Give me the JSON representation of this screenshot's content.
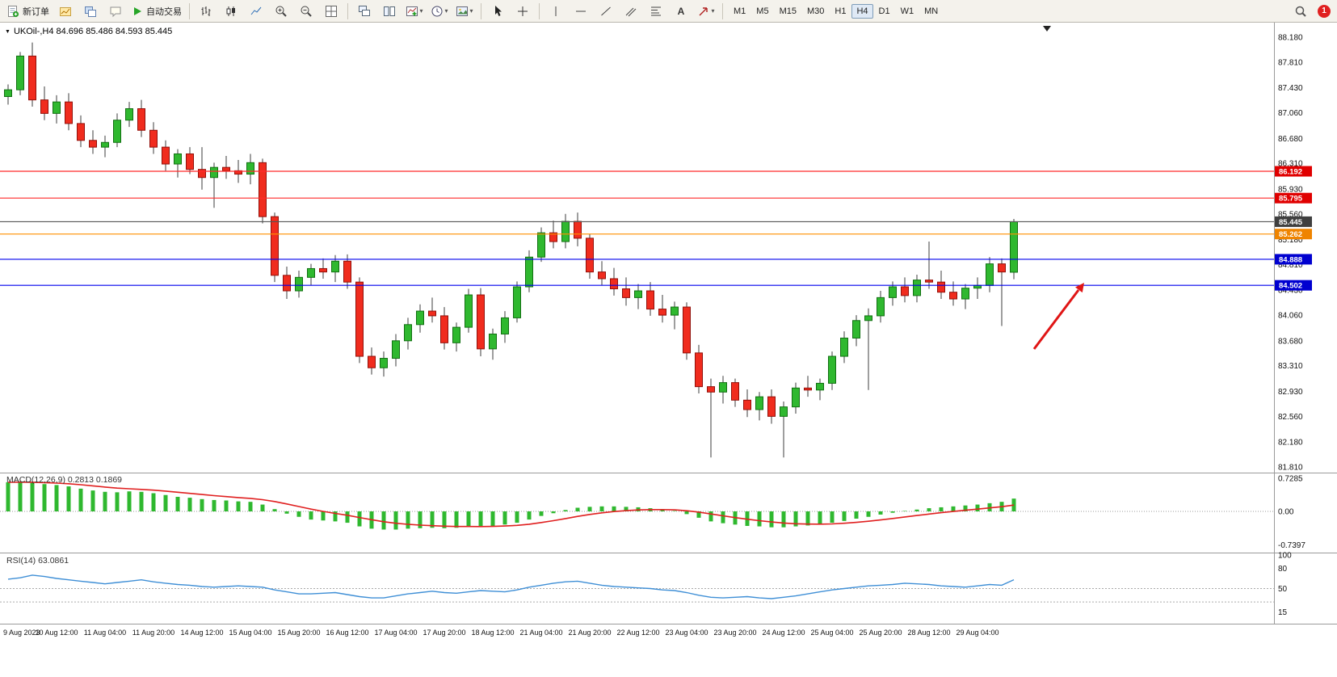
{
  "window": {
    "symbol_info": "UKOil-,H4 84.696 85.486 84.593 85.445"
  },
  "toolbar": {
    "new_order_label": "新订单",
    "autotrading_label": "自动交易",
    "text_tool_label": "A",
    "notification_count": "1",
    "timeframes": [
      {
        "label": "M1",
        "active": false
      },
      {
        "label": "M5",
        "active": false
      },
      {
        "label": "M15",
        "active": false
      },
      {
        "label": "M30",
        "active": false
      },
      {
        "label": "H1",
        "active": false
      },
      {
        "label": "H4",
        "active": true
      },
      {
        "label": "D1",
        "active": false
      },
      {
        "label": "W1",
        "active": false
      },
      {
        "label": "MN",
        "active": false
      }
    ]
  },
  "indicators": {
    "macd": {
      "label": "MACD(12,26,9) 0.2813 0.1869",
      "axis_labels": [
        "0.7285",
        "0.00",
        "-0.7397"
      ]
    },
    "rsi": {
      "label": "RSI(14) 63.0861",
      "axis_labels": [
        "100",
        "80",
        "50",
        "15"
      ],
      "levels": [
        50,
        30
      ]
    }
  },
  "colors": {
    "up_body": "#2fb82f",
    "up_border": "#127012",
    "down_body": "#f02c1e",
    "down_border": "#92100a",
    "wick": "#3c3c3c",
    "macd_hist": "#2fb82f",
    "macd_signal": "#e02020",
    "rsi_line": "#3f8fd6",
    "annotation_arrow": "#e01515",
    "pane_divider": "#9a9a9a"
  },
  "chart_data": {
    "type": "candlestick",
    "symbol": "UKOil-",
    "timeframe": "H4",
    "last_bar": {
      "open": 84.696,
      "high": 85.486,
      "low": 84.593,
      "close": 85.445
    },
    "price_axis_ticks": [
      "88.180",
      "87.810",
      "87.430",
      "87.060",
      "86.680",
      "86.310",
      "85.930",
      "85.560",
      "85.180",
      "84.810",
      "84.430",
      "84.060",
      "83.680",
      "83.310",
      "82.930",
      "82.560",
      "82.180",
      "81.810"
    ],
    "x_labels": [
      "9 Aug 2023",
      "10 Aug 12:00",
      "11 Aug 04:00",
      "11 Aug 20:00",
      "14 Aug 12:00",
      "15 Aug 04:00",
      "15 Aug 20:00",
      "16 Aug 12:00",
      "17 Aug 04:00",
      "17 Aug 20:00",
      "18 Aug 12:00",
      "21 Aug 04:00",
      "21 Aug 20:00",
      "22 Aug 12:00",
      "23 Aug 04:00",
      "23 Aug 20:00",
      "24 Aug 12:00",
      "25 Aug 04:00",
      "25 Aug 20:00",
      "28 Aug 12:00",
      "29 Aug 04:00"
    ],
    "bars_per_label": 4,
    "ohlc": [
      [
        87.3,
        87.48,
        87.18,
        87.4
      ],
      [
        87.4,
        87.96,
        87.32,
        87.9
      ],
      [
        87.9,
        88.1,
        87.15,
        87.25
      ],
      [
        87.25,
        87.45,
        86.95,
        87.05
      ],
      [
        87.05,
        87.32,
        86.9,
        87.22
      ],
      [
        87.22,
        87.35,
        86.8,
        86.9
      ],
      [
        86.9,
        87.02,
        86.55,
        86.65
      ],
      [
        86.65,
        86.8,
        86.45,
        86.55
      ],
      [
        86.55,
        86.72,
        86.4,
        86.62
      ],
      [
        86.62,
        87.05,
        86.55,
        86.95
      ],
      [
        86.95,
        87.22,
        86.85,
        87.12
      ],
      [
        87.12,
        87.25,
        86.7,
        86.8
      ],
      [
        86.8,
        86.92,
        86.45,
        86.55
      ],
      [
        86.55,
        86.65,
        86.2,
        86.3
      ],
      [
        86.3,
        86.52,
        86.1,
        86.45
      ],
      [
        86.45,
        86.55,
        86.15,
        86.22
      ],
      [
        86.22,
        86.55,
        85.92,
        86.1
      ],
      [
        86.1,
        86.32,
        85.65,
        86.25
      ],
      [
        86.25,
        86.42,
        86.08,
        86.2
      ],
      [
        86.2,
        86.36,
        86.02,
        86.15
      ],
      [
        86.15,
        86.45,
        86.0,
        86.32
      ],
      [
        86.32,
        86.38,
        85.42,
        85.52
      ],
      [
        85.52,
        85.58,
        84.55,
        84.65
      ],
      [
        84.65,
        84.78,
        84.3,
        84.42
      ],
      [
        84.42,
        84.72,
        84.32,
        84.62
      ],
      [
        84.62,
        84.82,
        84.5,
        84.75
      ],
      [
        84.75,
        84.9,
        84.6,
        84.7
      ],
      [
        84.7,
        84.95,
        84.55,
        84.86
      ],
      [
        84.86,
        84.96,
        84.45,
        84.55
      ],
      [
        84.55,
        84.62,
        83.35,
        83.45
      ],
      [
        83.45,
        83.58,
        83.18,
        83.28
      ],
      [
        83.28,
        83.52,
        83.15,
        83.42
      ],
      [
        83.42,
        83.78,
        83.3,
        83.68
      ],
      [
        83.68,
        84.02,
        83.55,
        83.92
      ],
      [
        83.92,
        84.22,
        83.8,
        84.12
      ],
      [
        84.12,
        84.32,
        83.95,
        84.05
      ],
      [
        84.05,
        84.18,
        83.55,
        83.65
      ],
      [
        83.65,
        83.95,
        83.52,
        83.88
      ],
      [
        83.88,
        84.45,
        83.8,
        84.36
      ],
      [
        84.36,
        84.46,
        83.45,
        83.56
      ],
      [
        83.56,
        83.86,
        83.4,
        83.78
      ],
      [
        83.78,
        84.12,
        83.65,
        84.02
      ],
      [
        84.02,
        84.56,
        83.95,
        84.48
      ],
      [
        84.48,
        85.02,
        84.4,
        84.92
      ],
      [
        84.92,
        85.36,
        84.85,
        85.28
      ],
      [
        85.28,
        85.46,
        85.05,
        85.15
      ],
      [
        85.15,
        85.56,
        85.05,
        85.45
      ],
      [
        85.45,
        85.58,
        85.08,
        85.2
      ],
      [
        85.2,
        85.26,
        84.6,
        84.7
      ],
      [
        84.7,
        84.86,
        84.5,
        84.6
      ],
      [
        84.6,
        84.76,
        84.35,
        84.45
      ],
      [
        84.45,
        84.62,
        84.2,
        84.32
      ],
      [
        84.32,
        84.52,
        84.15,
        84.42
      ],
      [
        84.42,
        84.55,
        84.05,
        84.15
      ],
      [
        84.15,
        84.36,
        83.95,
        84.06
      ],
      [
        84.06,
        84.26,
        83.85,
        84.18
      ],
      [
        84.18,
        84.25,
        83.4,
        83.5
      ],
      [
        83.5,
        83.62,
        82.9,
        83.0
      ],
      [
        83.0,
        83.12,
        81.95,
        82.92
      ],
      [
        82.92,
        83.16,
        82.75,
        83.06
      ],
      [
        83.06,
        83.12,
        82.7,
        82.8
      ],
      [
        82.8,
        82.96,
        82.55,
        82.66
      ],
      [
        82.66,
        82.92,
        82.5,
        82.85
      ],
      [
        82.85,
        82.96,
        82.45,
        82.56
      ],
      [
        82.56,
        82.78,
        81.95,
        82.7
      ],
      [
        82.7,
        83.06,
        82.6,
        82.98
      ],
      [
        82.98,
        83.16,
        82.85,
        82.95
      ],
      [
        82.95,
        83.12,
        82.8,
        83.05
      ],
      [
        83.05,
        83.52,
        82.95,
        83.45
      ],
      [
        83.45,
        83.82,
        83.35,
        83.72
      ],
      [
        83.72,
        84.06,
        83.6,
        83.98
      ],
      [
        83.98,
        84.16,
        82.95,
        84.05
      ],
      [
        84.05,
        84.42,
        83.95,
        84.32
      ],
      [
        84.32,
        84.56,
        84.2,
        84.48
      ],
      [
        84.48,
        84.62,
        84.25,
        84.35
      ],
      [
        84.35,
        84.66,
        84.25,
        84.58
      ],
      [
        84.58,
        85.15,
        84.45,
        84.55
      ],
      [
        84.55,
        84.72,
        84.3,
        84.4
      ],
      [
        84.4,
        84.56,
        84.2,
        84.3
      ],
      [
        84.3,
        84.52,
        84.15,
        84.46
      ],
      [
        84.46,
        84.62,
        84.3,
        84.5
      ],
      [
        84.5,
        84.92,
        84.4,
        84.82
      ],
      [
        84.82,
        84.9,
        83.9,
        84.7
      ],
      [
        84.696,
        85.486,
        84.593,
        85.445
      ]
    ],
    "horizontal_lines": [
      {
        "name": "resistance-line-1",
        "price": 86.192,
        "label": "86.192",
        "color": "#ff2a2a",
        "label_bg": "#e00000"
      },
      {
        "name": "resistance-line-2",
        "price": 85.795,
        "label": "85.795",
        "color": "#ff2a2a",
        "label_bg": "#e00000"
      },
      {
        "name": "current-price-line",
        "price": 85.445,
        "label": "85.445",
        "color": "#555555",
        "label_bg": "#3f3f3f"
      },
      {
        "name": "pivot-line",
        "price": 85.262,
        "label": "85.262",
        "color": "#ff9000",
        "label_bg": "#ef8400"
      },
      {
        "name": "support-line-1",
        "price": 84.888,
        "label": "84.888",
        "color": "#0000ee",
        "label_bg": "#0000d0"
      },
      {
        "name": "support-line-2",
        "price": 84.502,
        "label": "84.502",
        "color": "#0000ee",
        "label_bg": "#0000d0"
      }
    ],
    "macd": {
      "axis_max": 0.7285,
      "axis_min": -0.7397,
      "signal_ema": 9,
      "current_main": 0.2813,
      "current_signal": 0.1869,
      "main": [
        0.64,
        0.66,
        0.63,
        0.6,
        0.58,
        0.55,
        0.5,
        0.46,
        0.43,
        0.42,
        0.44,
        0.43,
        0.4,
        0.36,
        0.32,
        0.3,
        0.27,
        0.25,
        0.24,
        0.22,
        0.21,
        0.15,
        0.05,
        -0.05,
        -0.12,
        -0.18,
        -0.2,
        -0.22,
        -0.25,
        -0.33,
        -0.38,
        -0.4,
        -0.4,
        -0.38,
        -0.37,
        -0.36,
        -0.37,
        -0.36,
        -0.33,
        -0.34,
        -0.32,
        -0.29,
        -0.25,
        -0.18,
        -0.1,
        -0.04,
        0.03,
        0.08,
        0.1,
        0.11,
        0.11,
        0.1,
        0.09,
        0.07,
        0.04,
        0.01,
        -0.06,
        -0.14,
        -0.22,
        -0.26,
        -0.29,
        -0.32,
        -0.33,
        -0.35,
        -0.35,
        -0.33,
        -0.31,
        -0.29,
        -0.25,
        -0.21,
        -0.16,
        -0.12,
        -0.07,
        -0.03,
        0.01,
        0.04,
        0.07,
        0.09,
        0.11,
        0.13,
        0.15,
        0.18,
        0.21,
        0.2813
      ]
    },
    "rsi": {
      "current": 63.0861,
      "values": [
        64,
        66,
        70,
        68,
        65,
        63,
        61,
        59,
        57,
        59,
        61,
        63,
        60,
        58,
        56,
        55,
        53,
        52,
        53,
        54,
        53,
        52,
        48,
        45,
        42,
        42,
        43,
        44,
        41,
        38,
        36,
        36,
        39,
        42,
        44,
        46,
        44,
        43,
        45,
        47,
        46,
        45,
        48,
        52,
        55,
        58,
        60,
        61,
        58,
        55,
        53,
        52,
        51,
        50,
        48,
        47,
        44,
        40,
        37,
        36,
        37,
        38,
        36,
        35,
        37,
        39,
        42,
        45,
        48,
        50,
        52,
        54,
        55,
        56,
        58,
        57,
        56,
        54,
        53,
        52,
        54,
        56,
        55,
        63.0861
      ]
    }
  }
}
